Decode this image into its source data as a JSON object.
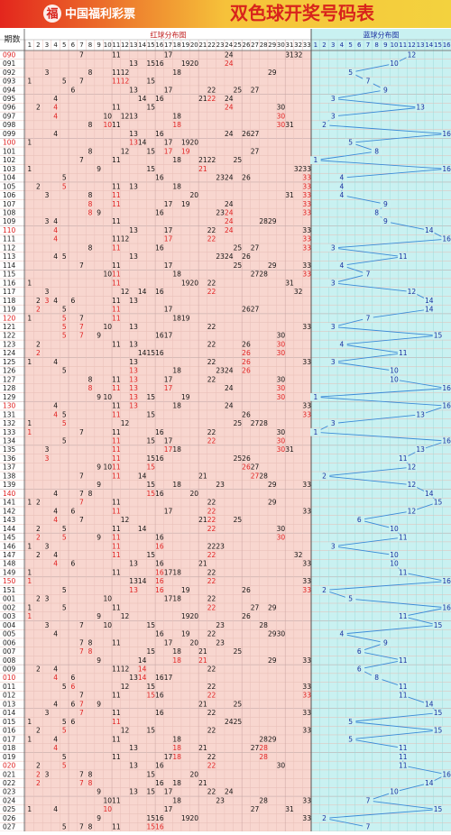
{
  "header": {
    "logo": "中国福利彩票",
    "title": "双色球开奖号码表"
  },
  "columns": {
    "period": "期数",
    "red_title": "红球分布图",
    "blue_title": "蓝球分布图",
    "red_numbers": [
      1,
      2,
      3,
      4,
      5,
      6,
      7,
      8,
      9,
      10,
      11,
      12,
      13,
      14,
      15,
      16,
      17,
      18,
      19,
      20,
      21,
      22,
      23,
      24,
      25,
      26,
      27,
      28,
      29,
      30,
      31,
      32,
      33
    ],
    "blue_numbers": [
      1,
      2,
      3,
      4,
      5,
      6,
      7,
      8,
      9,
      10,
      11,
      12,
      13,
      14,
      15,
      16
    ]
  },
  "colors": {
    "number": "#111111",
    "repeat": "#e02020",
    "period": "#222222",
    "period_highlight": "#e02020",
    "blue_number": "#1a2fa0",
    "blue_line": "#3a8ad8",
    "red_bg": "#f8d6cf",
    "blue_bg": "#c9f1f1"
  },
  "draws": [
    {
      "period": "090",
      "red": [
        7,
        11,
        17,
        24,
        31,
        32
      ],
      "blue": 12
    },
    {
      "period": "091",
      "red": [
        13,
        15,
        16,
        19,
        20,
        24
      ],
      "blue": 10
    },
    {
      "period": "092",
      "red": [
        3,
        8,
        11,
        12,
        18,
        29
      ],
      "blue": 5
    },
    {
      "period": "093",
      "red": [
        1,
        5,
        7,
        11,
        12,
        15
      ],
      "blue": 7
    },
    {
      "period": "094",
      "red": [
        6,
        13,
        17,
        22,
        25,
        27
      ],
      "blue": 9
    },
    {
      "period": "095",
      "red": [
        4,
        14,
        16,
        21,
        22,
        24
      ],
      "blue": 3
    },
    {
      "period": "096",
      "red": [
        2,
        4,
        11,
        15,
        24,
        30
      ],
      "blue": 13
    },
    {
      "period": "097",
      "red": [
        4,
        10,
        12,
        13,
        18,
        30
      ],
      "blue": 3
    },
    {
      "period": "098",
      "red": [
        8,
        10,
        11,
        18,
        30,
        31
      ],
      "blue": 2
    },
    {
      "period": "099",
      "red": [
        4,
        13,
        16,
        24,
        26,
        27
      ],
      "blue": 16
    },
    {
      "period": "100",
      "red": [
        1,
        13,
        14,
        17,
        19,
        20
      ],
      "blue": 5
    },
    {
      "period": "101",
      "red": [
        8,
        12,
        15,
        17,
        19,
        27
      ],
      "blue": 8
    },
    {
      "period": "102",
      "red": [
        7,
        11,
        18,
        21,
        22,
        25
      ],
      "blue": 1
    },
    {
      "period": "103",
      "red": [
        1,
        9,
        15,
        21,
        32,
        33
      ],
      "blue": 16
    },
    {
      "period": "104",
      "red": [
        5,
        16,
        23,
        24,
        26,
        33
      ],
      "blue": 4
    },
    {
      "period": "105",
      "red": [
        2,
        5,
        11,
        13,
        18,
        33
      ],
      "blue": 4
    },
    {
      "period": "106",
      "red": [
        3,
        8,
        11,
        20,
        31,
        33
      ],
      "blue": 4
    },
    {
      "period": "107",
      "red": [
        8,
        11,
        17,
        19,
        24,
        33
      ],
      "blue": 9
    },
    {
      "period": "108",
      "red": [
        8,
        9,
        16,
        23,
        24,
        33
      ],
      "blue": 8
    },
    {
      "period": "109",
      "red": [
        3,
        4,
        11,
        24,
        28,
        29
      ],
      "blue": 9
    },
    {
      "period": "110",
      "red": [
        4,
        13,
        17,
        22,
        24,
        33
      ],
      "blue": 14
    },
    {
      "period": "111",
      "red": [
        4,
        11,
        12,
        17,
        22,
        33
      ],
      "blue": 16
    },
    {
      "period": "112",
      "red": [
        8,
        11,
        16,
        25,
        27,
        33
      ],
      "blue": 3
    },
    {
      "period": "113",
      "red": [
        4,
        5,
        13,
        23,
        24,
        26
      ],
      "blue": 11
    },
    {
      "period": "114",
      "red": [
        7,
        11,
        17,
        25,
        29,
        33
      ],
      "blue": 4
    },
    {
      "period": "115",
      "red": [
        10,
        11,
        18,
        27,
        28,
        33
      ],
      "blue": 7
    },
    {
      "period": "116",
      "red": [
        1,
        11,
        19,
        20,
        22,
        31
      ],
      "blue": 3
    },
    {
      "period": "117",
      "red": [
        3,
        12,
        14,
        16,
        22,
        32
      ],
      "blue": 12
    },
    {
      "period": "118",
      "red": [
        2,
        3,
        4,
        6,
        11,
        13
      ],
      "blue": 14
    },
    {
      "period": "119",
      "red": [
        2,
        5,
        11,
        17,
        26,
        27
      ],
      "blue": 14
    },
    {
      "period": "120",
      "red": [
        1,
        5,
        7,
        11,
        18,
        19
      ],
      "blue": 7
    },
    {
      "period": "121",
      "red": [
        5,
        7,
        10,
        13,
        22,
        33
      ],
      "blue": 3
    },
    {
      "period": "122",
      "red": [
        5,
        7,
        9,
        16,
        17,
        30
      ],
      "blue": 15
    },
    {
      "period": "123",
      "red": [
        2,
        11,
        13,
        22,
        26,
        30
      ],
      "blue": 4
    },
    {
      "period": "124",
      "red": [
        2,
        14,
        15,
        16,
        26,
        30
      ],
      "blue": 11
    },
    {
      "period": "125",
      "red": [
        1,
        4,
        13,
        22,
        26,
        33
      ],
      "blue": 3
    },
    {
      "period": "126",
      "red": [
        5,
        13,
        18,
        23,
        24,
        26
      ],
      "blue": 10
    },
    {
      "period": "127",
      "red": [
        8,
        11,
        13,
        17,
        22,
        30
      ],
      "blue": 10
    },
    {
      "period": "128",
      "red": [
        8,
        11,
        13,
        17,
        24,
        30
      ],
      "blue": 16
    },
    {
      "period": "129",
      "red": [
        9,
        10,
        13,
        15,
        19,
        30
      ],
      "blue": 1
    },
    {
      "period": "130",
      "red": [
        4,
        11,
        13,
        18,
        24,
        33
      ],
      "blue": 16
    },
    {
      "period": "131",
      "red": [
        4,
        5,
        11,
        15,
        26,
        33
      ],
      "blue": 13
    },
    {
      "period": "132",
      "red": [
        1,
        5,
        12,
        25,
        27,
        28
      ],
      "blue": 3
    },
    {
      "period": "133",
      "red": [
        1,
        7,
        11,
        16,
        22,
        30
      ],
      "blue": 1
    },
    {
      "period": "134",
      "red": [
        5,
        11,
        15,
        17,
        22,
        30
      ],
      "blue": 16
    },
    {
      "period": "135",
      "red": [
        3,
        11,
        17,
        18,
        30,
        31
      ],
      "blue": 13
    },
    {
      "period": "136",
      "red": [
        3,
        11,
        15,
        16,
        25,
        26
      ],
      "blue": 11
    },
    {
      "period": "137",
      "red": [
        9,
        10,
        11,
        15,
        26,
        27
      ],
      "blue": 12
    },
    {
      "period": "138",
      "red": [
        7,
        11,
        14,
        21,
        27,
        28
      ],
      "blue": 2
    },
    {
      "period": "139",
      "red": [
        9,
        15,
        18,
        23,
        29,
        33
      ],
      "blue": 12
    },
    {
      "period": "140",
      "red": [
        4,
        7,
        8,
        15,
        16,
        20
      ],
      "blue": 14
    },
    {
      "period": "141",
      "red": [
        1,
        2,
        7,
        11,
        22,
        29
      ],
      "blue": 15
    },
    {
      "period": "142",
      "red": [
        4,
        6,
        11,
        17,
        22,
        33
      ],
      "blue": 12
    },
    {
      "period": "143",
      "red": [
        4,
        7,
        12,
        21,
        22,
        25
      ],
      "blue": 6
    },
    {
      "period": "144",
      "red": [
        2,
        5,
        11,
        14,
        22,
        30
      ],
      "blue": 10
    },
    {
      "period": "145",
      "red": [
        2,
        5,
        9,
        11,
        16,
        30
      ],
      "blue": 11
    },
    {
      "period": "146",
      "red": [
        1,
        3,
        11,
        16,
        22,
        23
      ],
      "blue": 3
    },
    {
      "period": "147",
      "red": [
        2,
        4,
        11,
        15,
        22,
        32
      ],
      "blue": 10
    },
    {
      "period": "148",
      "red": [
        4,
        6,
        13,
        16,
        21,
        33
      ],
      "blue": 10
    },
    {
      "period": "149",
      "red": [
        1,
        11,
        16,
        17,
        18,
        22
      ],
      "blue": 11
    },
    {
      "period": "150",
      "red": [
        1,
        13,
        14,
        16,
        22,
        33
      ],
      "blue": 16
    },
    {
      "period": "151",
      "red": [
        5,
        13,
        16,
        19,
        26,
        33
      ],
      "blue": 2
    },
    {
      "period": "001",
      "red": [
        2,
        3,
        10,
        17,
        18,
        22
      ],
      "blue": 5
    },
    {
      "period": "002",
      "red": [
        1,
        5,
        11,
        22,
        27,
        29
      ],
      "blue": 16
    },
    {
      "period": "003",
      "red": [
        1,
        9,
        12,
        19,
        20,
        26
      ],
      "blue": 11
    },
    {
      "period": "004",
      "red": [
        3,
        7,
        10,
        15,
        23,
        28
      ],
      "blue": 15
    },
    {
      "period": "005",
      "red": [
        4,
        16,
        19,
        22,
        29,
        30
      ],
      "blue": 4
    },
    {
      "period": "006",
      "red": [
        7,
        8,
        11,
        17,
        20,
        23
      ],
      "blue": 9
    },
    {
      "period": "007",
      "red": [
        7,
        8,
        15,
        18,
        21,
        25
      ],
      "blue": 6
    },
    {
      "period": "008",
      "red": [
        9,
        14,
        18,
        21,
        29,
        33
      ],
      "blue": 11
    },
    {
      "period": "009",
      "red": [
        2,
        4,
        11,
        12,
        14,
        22
      ],
      "blue": 6
    },
    {
      "period": "010",
      "red": [
        4,
        6,
        13,
        14,
        16,
        17
      ],
      "blue": 8
    },
    {
      "period": "011",
      "red": [
        5,
        6,
        12,
        15,
        22,
        33
      ],
      "blue": 11
    },
    {
      "period": "012",
      "red": [
        7,
        11,
        15,
        16,
        22,
        33
      ],
      "blue": 11
    },
    {
      "period": "013",
      "red": [
        4,
        6,
        7,
        9,
        21,
        25
      ],
      "blue": 14
    },
    {
      "period": "014",
      "red": [
        3,
        7,
        11,
        16,
        22,
        33
      ],
      "blue": 15
    },
    {
      "period": "015",
      "red": [
        1,
        5,
        6,
        11,
        24,
        25
      ],
      "blue": 5
    },
    {
      "period": "016",
      "red": [
        2,
        5,
        12,
        15,
        22,
        33
      ],
      "blue": 15
    },
    {
      "period": "017",
      "red": [
        1,
        4,
        11,
        18,
        28,
        29
      ],
      "blue": 5
    },
    {
      "period": "018",
      "red": [
        4,
        13,
        18,
        21,
        27,
        28
      ],
      "blue": 11
    },
    {
      "period": "019",
      "red": [
        5,
        11,
        17,
        18,
        22,
        28
      ],
      "blue": 11
    },
    {
      "period": "020",
      "red": [
        2,
        5,
        13,
        16,
        22,
        30
      ],
      "blue": 11
    },
    {
      "period": "021",
      "red": [
        2,
        3,
        7,
        8,
        15,
        20
      ],
      "blue": 16
    },
    {
      "period": "022",
      "red": [
        2,
        7,
        8,
        16,
        18,
        21
      ],
      "blue": 14
    },
    {
      "period": "023",
      "red": [
        9,
        13,
        15,
        17,
        22,
        24
      ],
      "blue": 10
    },
    {
      "period": "024",
      "red": [
        10,
        11,
        18,
        23,
        28,
        33
      ],
      "blue": 7
    },
    {
      "period": "025",
      "red": [
        1,
        4,
        10,
        17,
        27,
        31
      ],
      "blue": 15
    },
    {
      "period": "026",
      "red": [
        9,
        15,
        16,
        19,
        20,
        33
      ],
      "blue": 2
    },
    {
      "period": "027",
      "red": [
        5,
        7,
        8,
        11,
        15,
        16
      ],
      "blue": 7
    }
  ]
}
